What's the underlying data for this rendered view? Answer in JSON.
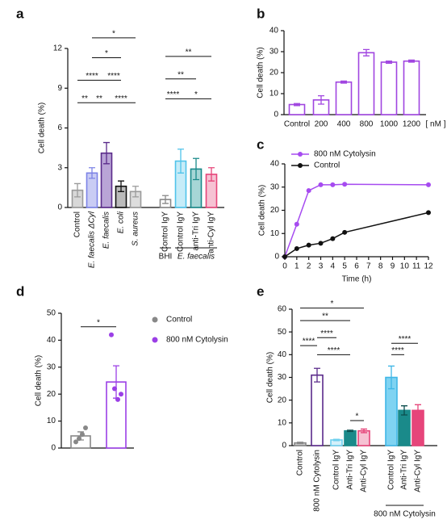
{
  "chart_data": [
    {
      "panel": "a",
      "type": "bar",
      "ylabel": "Cell death (%)",
      "ylim": [
        0,
        12
      ],
      "yticks": [
        0,
        3,
        6,
        9,
        12
      ],
      "categories": [
        "Control",
        "E. faecalis ΔCyl",
        "E. faecalis",
        "E. coli",
        "S. aureus",
        "Control IgY",
        "Control IgY",
        "anti-Tri IgY",
        "anti-Cyl IgY"
      ],
      "values": [
        1.3,
        2.6,
        4.1,
        1.6,
        1.2,
        0.6,
        3.5,
        2.9,
        2.5
      ],
      "errors": [
        0.5,
        0.4,
        0.8,
        0.4,
        0.4,
        0.3,
        0.9,
        0.8,
        0.5
      ],
      "colors": [
        "#9a9a9a",
        "#7c83e6",
        "#5a2a8a",
        "#111111",
        "#9a9a9a",
        "#888888",
        "#4fc3ea",
        "#1a8a8a",
        "#e6457a"
      ],
      "fills": [
        "#d8d8d8",
        "#c9ccf4",
        "#b9a4d6",
        "#bbbbbb",
        "#dddddd",
        "#ffffff",
        "#c6ecf8",
        "#a6d6d6",
        "#f6c2d3"
      ],
      "groups": [
        "BHI",
        "E. faecalis"
      ],
      "annotations": [
        "*",
        "*",
        "****",
        "****",
        "**",
        "**",
        "****",
        "**",
        "**",
        "****",
        "*"
      ]
    },
    {
      "panel": "b",
      "type": "bar",
      "ylabel": "Cell death (%)",
      "ylim": [
        0,
        40
      ],
      "yticks": [
        0,
        10,
        20,
        30,
        40
      ],
      "categories": [
        "Control",
        "200",
        "400",
        "800",
        "1000",
        "1200"
      ],
      "unit": "[ nM ]",
      "values": [
        4.8,
        7,
        15.5,
        29.5,
        25,
        25.5
      ],
      "errors": [
        0.5,
        2,
        0.5,
        1.5,
        0.5,
        0.5
      ],
      "colors": [
        "#a045e0",
        "#a045e0",
        "#a045e0",
        "#a045e0",
        "#a045e0",
        "#a045e0"
      ],
      "fills": [
        "#ffffff",
        "#ffffff",
        "#ffffff",
        "#ffffff",
        "#ffffff",
        "#ffffff"
      ]
    },
    {
      "panel": "c",
      "type": "line",
      "ylabel": "Cell death (%)",
      "xlabel": "Time (h)",
      "xlim": [
        0,
        12
      ],
      "xticks": [
        0,
        1,
        2,
        3,
        4,
        5,
        6,
        7,
        8,
        9,
        10,
        11,
        12
      ],
      "ylim": [
        0,
        40
      ],
      "yticks": [
        0,
        10,
        20,
        30,
        40
      ],
      "series": [
        {
          "name": "800 nM Cytolysin",
          "color": "#a64bf0",
          "x": [
            0,
            1,
            2,
            3,
            4,
            5,
            12
          ],
          "values": [
            0,
            14,
            28.5,
            31,
            31,
            31.2,
            31
          ]
        },
        {
          "name": "Control",
          "color": "#111111",
          "x": [
            0,
            1,
            2,
            3,
            4,
            5,
            12
          ],
          "values": [
            0,
            3.5,
            5,
            5.8,
            7.8,
            10.5,
            19
          ]
        }
      ]
    },
    {
      "panel": "d",
      "type": "bar",
      "ylabel": "Cell death (%)",
      "ylim": [
        0,
        50
      ],
      "yticks": [
        0,
        10,
        20,
        30,
        40,
        50
      ],
      "categories": [
        "Control",
        "800 nM Cytolysin"
      ],
      "values": [
        4.5,
        24.5
      ],
      "errors": [
        1.5,
        6
      ],
      "points": [
        [
          2.3,
          3.5,
          5,
          7.5
        ],
        [
          42,
          22,
          18,
          20
        ]
      ],
      "colors": [
        "#888888",
        "#9b3fe6"
      ],
      "fills": [
        "#ffffff",
        "#ffffff"
      ],
      "annotations": [
        "*"
      ]
    },
    {
      "panel": "e",
      "type": "bar",
      "ylabel": "Cell death (%)",
      "ylim": [
        0,
        60
      ],
      "yticks": [
        0,
        10,
        20,
        30,
        40,
        50,
        60
      ],
      "categories": [
        "Control",
        "800 nM Cytolysin",
        "Control IgY",
        "Anti-Tri IgY",
        "Anti-Cyl IgY",
        "Control IgY",
        "Anti-Tri IgY",
        "Anti-Cyl IgY"
      ],
      "values": [
        1.2,
        31,
        2.5,
        6.5,
        6.5,
        30,
        15.5,
        15.5
      ],
      "errors": [
        0.3,
        3,
        0.3,
        0.3,
        0.8,
        5,
        2,
        2.5
      ],
      "colors": [
        "#888888",
        "#5a2a8a",
        "#6fd0ee",
        "#1a8a8a",
        "#e6457a",
        "#3fb6e6",
        "#1a8a8a",
        "#e6457a"
      ],
      "fills": [
        "#cccccc",
        "#ffffff",
        "#d4f0fa",
        "#1a8a8a",
        "#f6c2d3",
        "#7fd3f2",
        "#1a8a8a",
        "#e6457a"
      ],
      "groups": [
        "800 nM Cytolysin"
      ],
      "annotations": [
        "*",
        "**",
        "****",
        "****",
        "****",
        "*",
        "****",
        "****"
      ]
    }
  ]
}
